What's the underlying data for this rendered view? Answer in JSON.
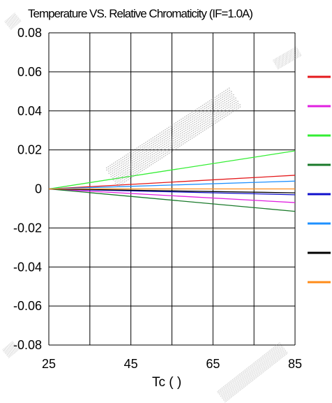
{
  "chart_data": {
    "type": "line",
    "title": "Temperature VS. Relative Chromaticity (IF=1.0A)",
    "xlabel": "Tc (   )",
    "ylabel": "",
    "xlim": [
      25,
      85
    ],
    "ylim": [
      -0.08,
      0.08
    ],
    "x_ticks": [
      "25",
      "45",
      "65",
      "85"
    ],
    "y_ticks": [
      "0.08",
      "0.06",
      "0.04",
      "0.02",
      "0",
      "-0.02",
      "-0.04",
      "-0.06",
      "-0.08"
    ],
    "grid": true,
    "legend_position": "right",
    "x": [
      25,
      85
    ],
    "series": [
      {
        "color": "#e41a1c",
        "values": [
          0,
          0.007
        ]
      },
      {
        "color": "#e020e0",
        "values": [
          0,
          -0.007
        ]
      },
      {
        "color": "#33ee33",
        "values": [
          0,
          0.0195
        ]
      },
      {
        "color": "#1a7a2a",
        "values": [
          0,
          -0.0115
        ]
      },
      {
        "color": "#1010cc",
        "values": [
          0,
          -0.003
        ]
      },
      {
        "color": "#1e90ff",
        "values": [
          0,
          0.004
        ]
      },
      {
        "color": "#000000",
        "values": [
          0,
          -0.002
        ]
      },
      {
        "color": "#ff8c1a",
        "values": [
          0,
          0
        ]
      }
    ]
  }
}
